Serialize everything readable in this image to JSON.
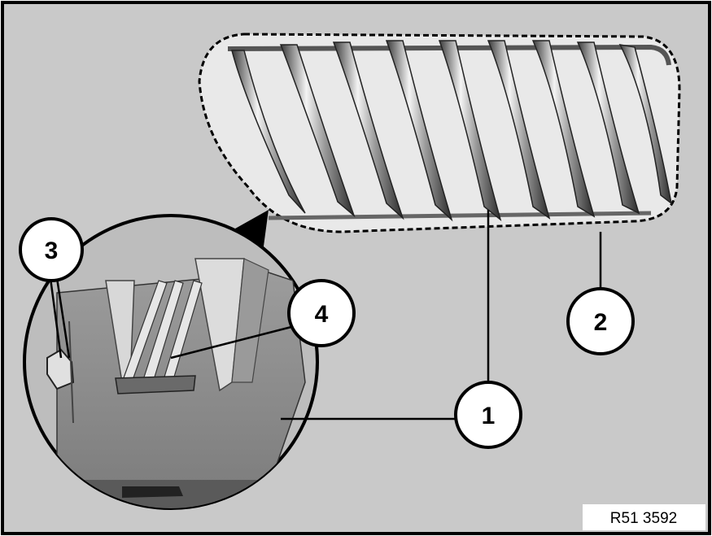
{
  "reference_code": "R51 3592",
  "callouts": [
    {
      "id": "1",
      "label": "1"
    },
    {
      "id": "2",
      "label": "2"
    },
    {
      "id": "3",
      "label": "3"
    },
    {
      "id": "4",
      "label": "4"
    }
  ],
  "colors": {
    "background": "#c9c9c9",
    "frame": "#000000",
    "grille_bar_light": "#f2f2f2",
    "grille_bar_dark": "#3a3a3a",
    "clip_body": "#8a8a8a"
  }
}
